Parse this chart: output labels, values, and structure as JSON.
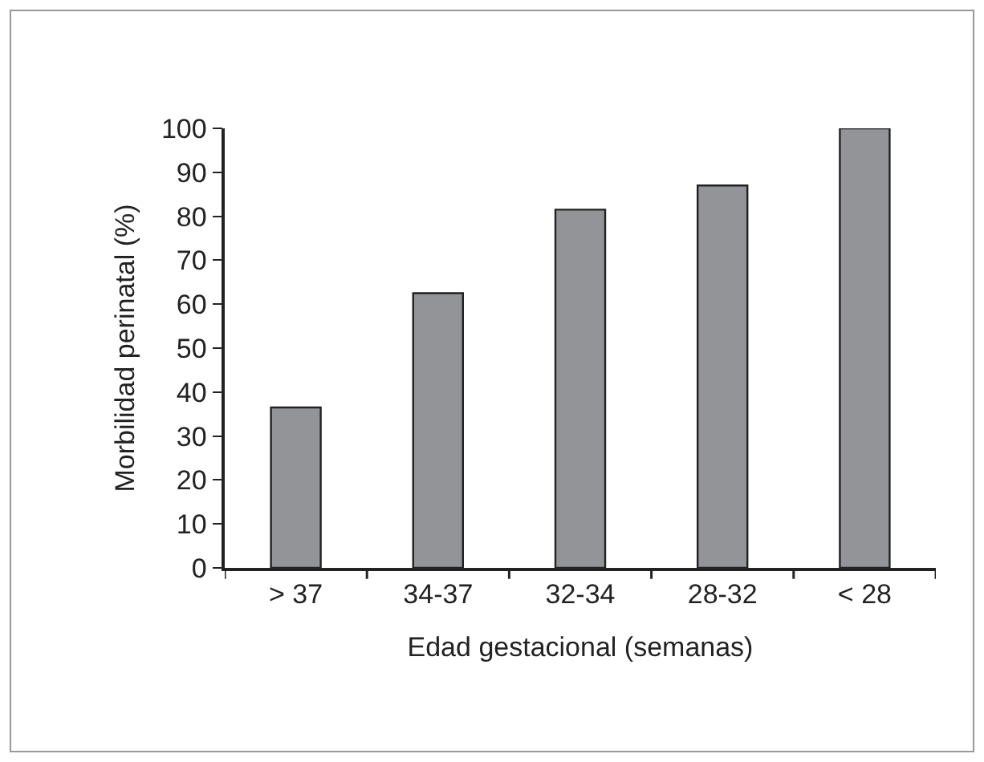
{
  "chart_data": {
    "type": "bar",
    "xlabel": "Edad gestacional (semanas)",
    "ylabel": "Morbilidad perinatal (%)",
    "categories": [
      "> 37",
      "34-37",
      "32-34",
      "28-32",
      "< 28"
    ],
    "values": [
      36.5,
      62.5,
      81.5,
      87,
      100
    ],
    "color": "#939498",
    "ylim": [
      0,
      100
    ],
    "yticks": [
      0,
      10,
      20,
      30,
      40,
      50,
      60,
      70,
      80,
      90,
      100
    ],
    "grid": false
  }
}
